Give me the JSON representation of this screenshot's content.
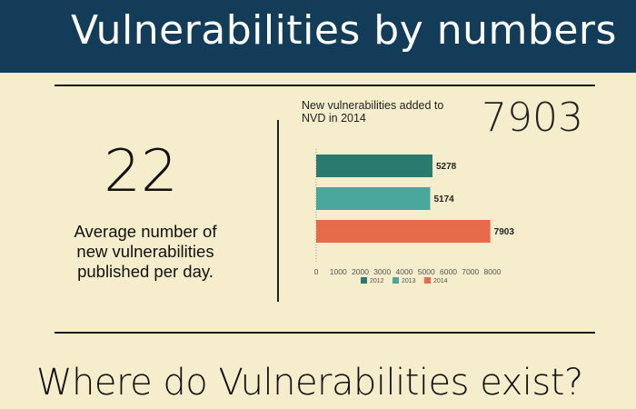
{
  "header": {
    "title": "Vulnerabilities by numbers"
  },
  "stat": {
    "value": "22",
    "caption_lines": [
      "Average number of",
      "new vulnerabilities",
      "published per day."
    ]
  },
  "chart_heading": {
    "title_lines": [
      "New vulnerabilities added to",
      "NVD in 2014"
    ],
    "total": "7903"
  },
  "subheading": "Where do Vulnerabilities exist?",
  "chart_data": {
    "type": "bar",
    "orientation": "horizontal",
    "categories": [
      "2012",
      "2013",
      "2014"
    ],
    "values": [
      5278,
      5174,
      7903
    ],
    "value_labels": [
      "5278",
      "5174",
      "7903"
    ],
    "colors": [
      "#2a7b6e",
      "#4aa79e",
      "#e56b4a"
    ],
    "xlim": [
      0,
      8000
    ],
    "xticks": [
      0,
      1000,
      2000,
      3000,
      4000,
      5000,
      6000,
      7000,
      8000
    ],
    "xtick_labels": [
      "0",
      "1000",
      "2000",
      "3000",
      "4000",
      "5000",
      "6000",
      "7000",
      "8000"
    ],
    "legend": {
      "position": "bottom",
      "entries": [
        "2012",
        "2013",
        "2014"
      ]
    },
    "grid": false
  }
}
